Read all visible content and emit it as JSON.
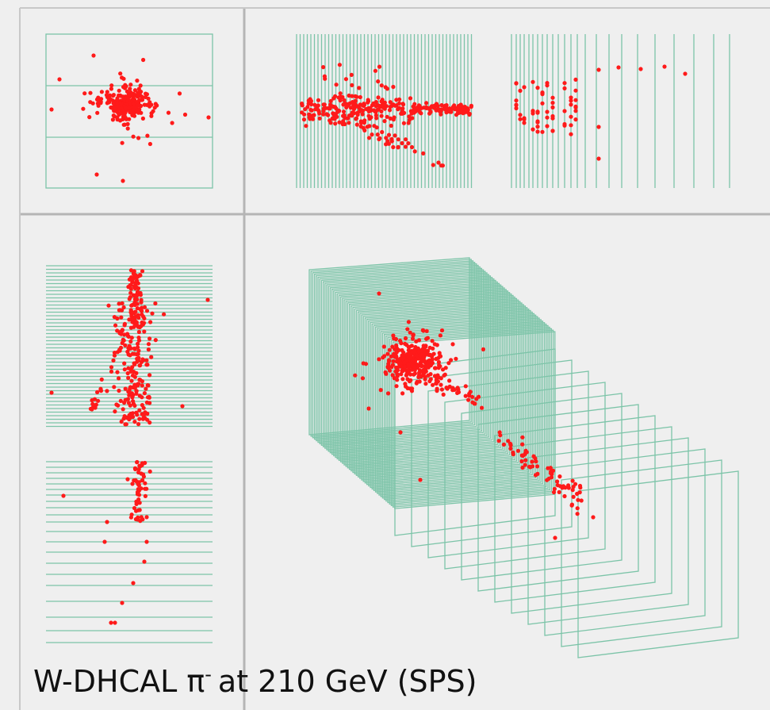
{
  "caption": {
    "prefix": "W-DHCAL π",
    "superscript": "-",
    "suffix": "at 210 GeV (SPS)"
  }
}
